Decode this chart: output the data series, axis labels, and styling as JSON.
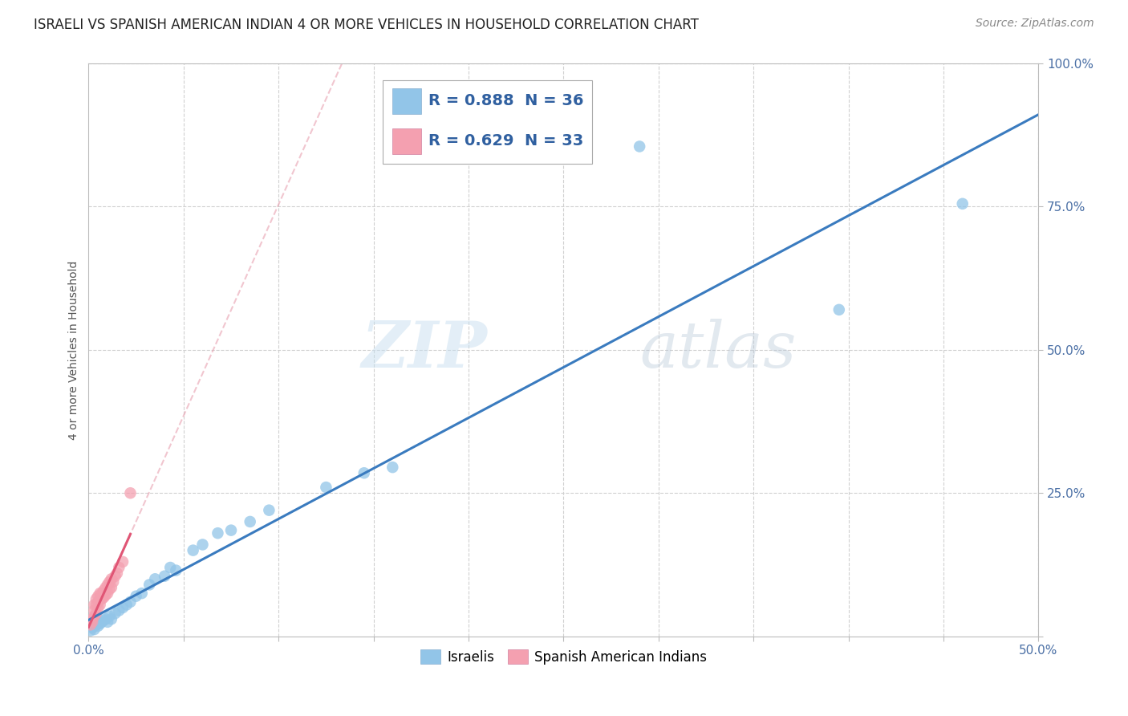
{
  "title": "ISRAELI VS SPANISH AMERICAN INDIAN 4 OR MORE VEHICLES IN HOUSEHOLD CORRELATION CHART",
  "source": "Source: ZipAtlas.com",
  "ylabel": "4 or more Vehicles in Household",
  "xlim": [
    0,
    0.5
  ],
  "ylim": [
    0,
    1.0
  ],
  "xtick_positions": [
    0.0,
    0.05,
    0.1,
    0.15,
    0.2,
    0.25,
    0.3,
    0.35,
    0.4,
    0.45,
    0.5
  ],
  "ytick_positions": [
    0.0,
    0.25,
    0.5,
    0.75,
    1.0
  ],
  "israeli_color": "#92c5e8",
  "spanish_color": "#f4a0b0",
  "israeli_line_color": "#3a7bbf",
  "spanish_line_color": "#e05575",
  "spanish_dash_color": "#e8a0b0",
  "watermark_zip": "ZIP",
  "watermark_atlas": "atlas",
  "grid_color": "#d0d0d0",
  "background_color": "#ffffff",
  "title_fontsize": 12,
  "axis_label_fontsize": 10,
  "tick_fontsize": 11,
  "legend_fontsize": 14,
  "source_fontsize": 10,
  "israeli_x": [
    0.001,
    0.002,
    0.003,
    0.004,
    0.005,
    0.006,
    0.007,
    0.008,
    0.009,
    0.01,
    0.011,
    0.012,
    0.014,
    0.016,
    0.018,
    0.02,
    0.022,
    0.025,
    0.028,
    0.032,
    0.035,
    0.04,
    0.043,
    0.046,
    0.055,
    0.06,
    0.068,
    0.075,
    0.085,
    0.095,
    0.125,
    0.145,
    0.16,
    0.29,
    0.395,
    0.46
  ],
  "israeli_y": [
    0.01,
    0.015,
    0.012,
    0.02,
    0.018,
    0.022,
    0.025,
    0.028,
    0.03,
    0.025,
    0.035,
    0.03,
    0.04,
    0.045,
    0.05,
    0.055,
    0.06,
    0.07,
    0.075,
    0.09,
    0.1,
    0.105,
    0.12,
    0.115,
    0.15,
    0.16,
    0.18,
    0.185,
    0.2,
    0.22,
    0.26,
    0.285,
    0.295,
    0.855,
    0.57,
    0.755
  ],
  "spanish_x": [
    0.001,
    0.002,
    0.002,
    0.003,
    0.003,
    0.003,
    0.004,
    0.004,
    0.004,
    0.005,
    0.005,
    0.005,
    0.006,
    0.006,
    0.006,
    0.007,
    0.007,
    0.008,
    0.008,
    0.009,
    0.009,
    0.01,
    0.01,
    0.011,
    0.011,
    0.012,
    0.012,
    0.013,
    0.014,
    0.015,
    0.016,
    0.018,
    0.022
  ],
  "spanish_y": [
    0.02,
    0.025,
    0.03,
    0.035,
    0.045,
    0.055,
    0.04,
    0.055,
    0.065,
    0.05,
    0.06,
    0.07,
    0.055,
    0.065,
    0.075,
    0.065,
    0.075,
    0.068,
    0.08,
    0.072,
    0.085,
    0.075,
    0.09,
    0.082,
    0.095,
    0.085,
    0.1,
    0.095,
    0.105,
    0.11,
    0.12,
    0.13,
    0.25
  ]
}
